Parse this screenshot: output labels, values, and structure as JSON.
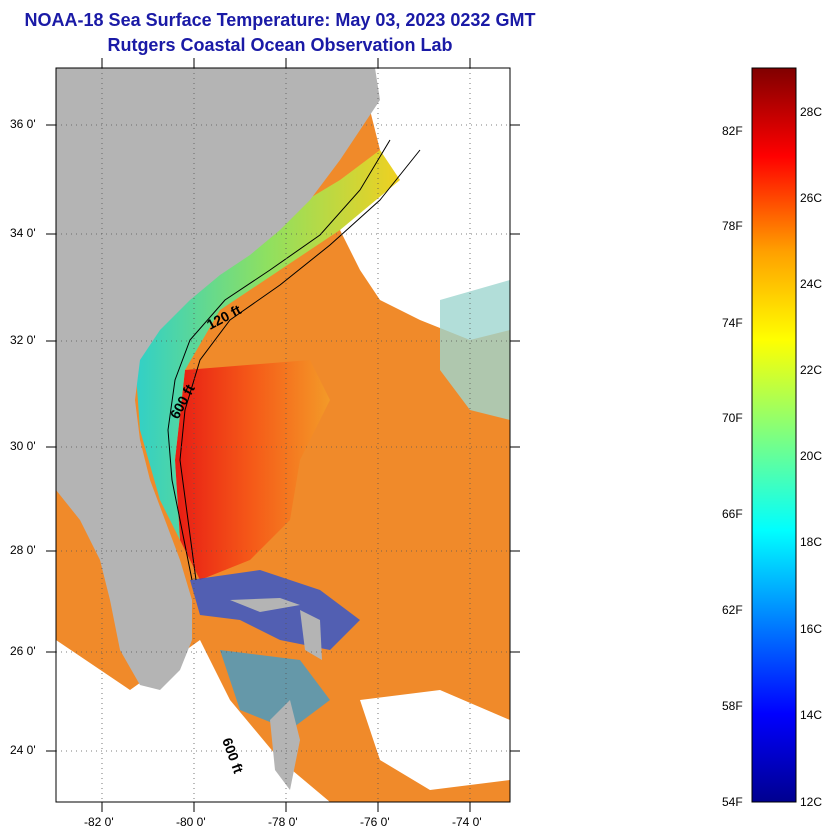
{
  "title": "NOAA-18 Sea Surface Temperature:  May 03, 2023 0232 GMT",
  "subtitle": "Rutgers Coastal Ocean Observation Lab",
  "map": {
    "lat_labels": [
      "36 0'",
      "34 0'",
      "32 0'",
      "30 0'",
      "28 0'",
      "26 0'",
      "24 0'"
    ],
    "lon_labels": [
      "-82 0'",
      "-80 0'",
      "-78 0'",
      "-76 0'",
      "-74 0'"
    ],
    "contour_labels": [
      "120 ft",
      "600 ft",
      "600 ft"
    ],
    "colors": {
      "land": "#b4b4b4",
      "cloud": "#ffffff",
      "gulf_stream": "#e8321c",
      "shelf": "#36d2a0"
    }
  },
  "colorbar": {
    "fahrenheit": [
      "82F",
      "78F",
      "74F",
      "70F",
      "66F",
      "62F",
      "58F",
      "54F"
    ],
    "celsius": [
      "28C",
      "26C",
      "24C",
      "22C",
      "20C",
      "18C",
      "16C",
      "14C",
      "12C"
    ],
    "range_c": [
      12,
      29
    ],
    "colormap": "jet"
  }
}
